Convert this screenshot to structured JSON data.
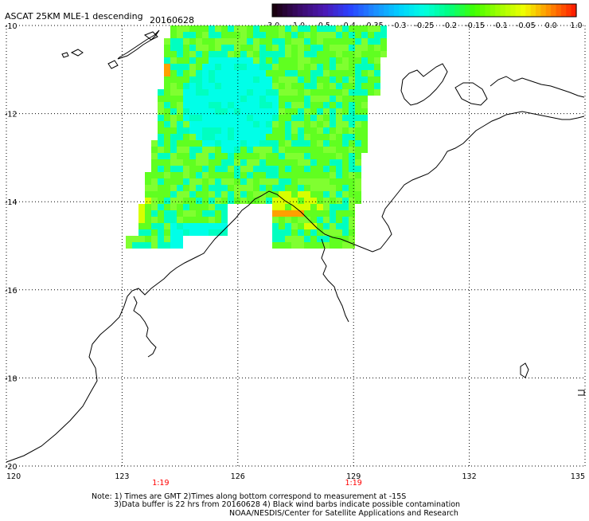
{
  "header": {
    "title": "ASCAT 25KM MLE-1 descending",
    "date": "20160628"
  },
  "colorbar": {
    "labels": [
      "-3.0",
      "-1.0",
      "-0.5",
      "-0.4",
      "-0.35",
      "-0.3",
      "-0.25",
      "-0.2",
      "-0.15",
      "-0.1",
      "-0.05",
      "0.0",
      "1.0"
    ],
    "colors": [
      "#1a0010",
      "#3a0a6a",
      "#4b18b4",
      "#2a40ff",
      "#1c8cff",
      "#00d0ff",
      "#00ffe0",
      "#00ff80",
      "#40ff00",
      "#a0ff00",
      "#f0ff00",
      "#ff9000",
      "#ff2000"
    ]
  },
  "axes": {
    "lon_labels": [
      "120",
      "123",
      "126",
      "129",
      "132",
      "135"
    ],
    "lat_labels": [
      "-10",
      "-12",
      "-14",
      "-16",
      "-18",
      "-20"
    ],
    "lon_range": [
      120,
      135
    ],
    "lat_range": [
      -20,
      -10
    ]
  },
  "time_labels": [
    {
      "text": "1:19",
      "lon": 124
    },
    {
      "text": "1:19",
      "lon": 129
    }
  ],
  "notes": {
    "line1": "Note: 1) Times are GMT 2)Times along bottom correspond to measurement at -15S",
    "line2": "3)Data buffer is 22 hrs from 20160628 4) Black wind barbs indicate possible contamination",
    "line3": "NOAA/NESDIS/Center for Satellite Applications and Research"
  },
  "legend_colors": {
    "grid": "#000000",
    "time_label": "#ff0000"
  }
}
